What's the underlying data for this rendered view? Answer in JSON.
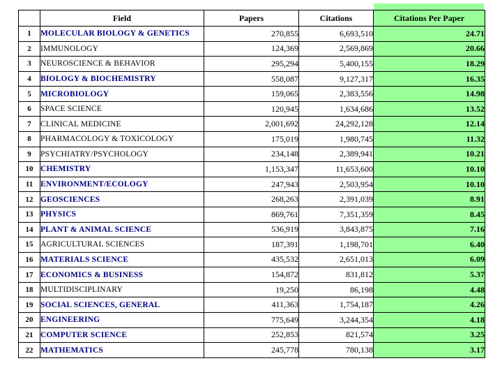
{
  "colors": {
    "field_highlight": "#000080",
    "cpp_background": "#99ff99",
    "table_border": "#000000",
    "page_background": "#ffffff"
  },
  "chart_data": {
    "type": "table",
    "columns": [
      "",
      "Field",
      "Papers",
      "Citations",
      "Citations Per Paper"
    ],
    "rows": [
      [
        "1",
        "MOLECULAR BIOLOGY & GENETICS",
        "270,855",
        "6,693,510",
        "24.71"
      ],
      [
        "2",
        "IMMUNOLOGY",
        "124,369",
        "2,569,869",
        "20.66"
      ],
      [
        "3",
        "NEUROSCIENCE & BEHAVIOR",
        "295,294",
        "5,400,155",
        "18.29"
      ],
      [
        "4",
        "BIOLOGY & BIOCHEMISTRY",
        "558,087",
        "9,127,317",
        "16.35"
      ],
      [
        "5",
        "MICROBIOLOGY",
        "159,065",
        "2,383,556",
        "14.98"
      ],
      [
        "6",
        "SPACE SCIENCE",
        "120,945",
        "1,634,686",
        "13.52"
      ],
      [
        "7",
        "CLINICAL MEDICINE",
        "2,001,692",
        "24,292,128",
        "12.14"
      ],
      [
        "8",
        "PHARMACOLOGY & TOXICOLOGY",
        "175,019",
        "1,980,745",
        "11.32"
      ],
      [
        "9",
        "PSYCHIATRY/PSYCHOLOGY",
        "234,148",
        "2,389,941",
        "10.21"
      ],
      [
        "10",
        "CHEMISTRY",
        "1,153,347",
        "11,653,600",
        "10.10"
      ],
      [
        "11",
        "ENVIRONMENT/ECOLOGY",
        "247,943",
        "2,503,954",
        "10.10"
      ],
      [
        "12",
        "GEOSCIENCES",
        "268,263",
        "2,391,039",
        "8.91"
      ],
      [
        "13",
        "PHYSICS",
        "869,761",
        "7,351,359",
        "8.45"
      ],
      [
        "14",
        "PLANT & ANIMAL SCIENCE",
        "536,919",
        "3,843,875",
        "7.16"
      ],
      [
        "15",
        "AGRICULTURAL SCIENCES",
        "187,391",
        "1,198,701",
        "6.40"
      ],
      [
        "16",
        "MATERIALS SCIENCE",
        "435,532",
        "2,651,013",
        "6.09"
      ],
      [
        "17",
        "ECONOMICS & BUSINESS",
        "154,872",
        "831,812",
        "5.37"
      ],
      [
        "18",
        "MULTIDISCIPLINARY",
        "19,250",
        "86,198",
        "4.48"
      ],
      [
        "19",
        "SOCIAL SCIENCES, GENERAL",
        "411,363",
        "1,754,187",
        "4.26"
      ],
      [
        "20",
        "ENGINEERING",
        "775,649",
        "3,244,354",
        "4.18"
      ],
      [
        "21",
        "COMPUTER SCIENCE",
        "252,853",
        "821,574",
        "3.25"
      ],
      [
        "22",
        "MATHEMATICS",
        "245,778",
        "780,138",
        "3.17"
      ]
    ],
    "highlighted_rows": [
      1,
      4,
      5,
      10,
      11,
      12,
      13,
      14,
      16,
      17,
      19,
      20,
      21,
      22
    ],
    "legend_position": "none",
    "grid": true
  }
}
